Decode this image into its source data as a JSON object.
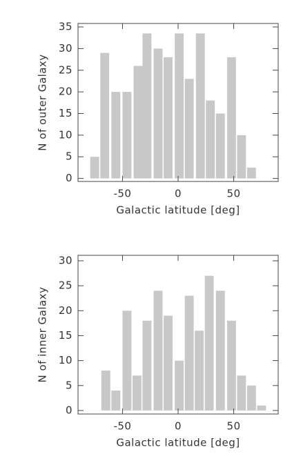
{
  "chart_data": [
    {
      "type": "bar",
      "color": "#c8c8c8",
      "bar_width": 8,
      "x": [
        -75,
        -66,
        -56,
        -46,
        -36,
        -28,
        -18,
        -9,
        1,
        10,
        20,
        29,
        38,
        48,
        57,
        66
      ],
      "values": [
        5,
        29,
        20,
        20,
        26,
        33.5,
        30,
        28,
        33.5,
        23,
        33.5,
        18,
        15,
        28,
        10,
        2.5
      ],
      "xlabel": "Galactic latitude [deg]",
      "ylabel": "N of outer Galaxy",
      "xlim": [
        -90,
        90
      ],
      "xticks": [
        -50,
        0,
        50
      ],
      "ylim": [
        -0.7,
        35.8
      ],
      "yticks": [
        0,
        5,
        10,
        15,
        20,
        25,
        30,
        35
      ]
    },
    {
      "type": "bar",
      "color": "#c8c8c8",
      "bar_width": 8,
      "x": [
        -65,
        -56,
        -46,
        -37,
        -28,
        -18,
        -9,
        1,
        10,
        19,
        28,
        38,
        48,
        57,
        66,
        75
      ],
      "values": [
        8,
        4,
        20,
        7,
        18,
        24,
        19,
        10,
        23,
        16,
        27,
        24,
        18,
        7,
        5,
        1
      ],
      "xlabel": "Galactic latitude [deg]",
      "ylabel": "N of inner Galaxy",
      "xlim": [
        -90,
        90
      ],
      "xticks": [
        -50,
        0,
        50
      ],
      "ylim": [
        -0.7,
        31.1
      ],
      "yticks": [
        0,
        5,
        10,
        15,
        20,
        25,
        30
      ]
    }
  ]
}
